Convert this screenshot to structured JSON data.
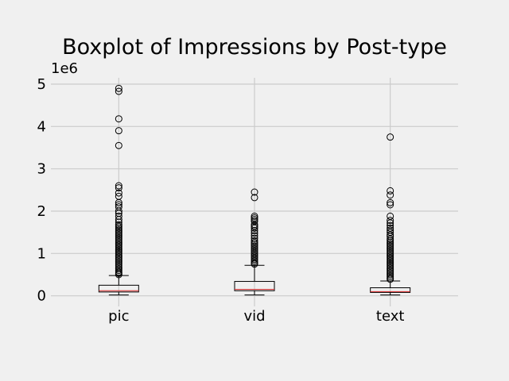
{
  "chart_data": {
    "type": "boxplot",
    "title": "Boxplot of Impressions by Post-type",
    "xlabel": "",
    "ylabel": "",
    "y_offset_label": "1e6",
    "y_scale": 1000000,
    "ylim": [
      -250000,
      5150000
    ],
    "y_ticks": [
      0,
      1000000,
      2000000,
      3000000,
      4000000,
      5000000
    ],
    "y_tick_labels": [
      "0",
      "1",
      "2",
      "3",
      "4",
      "5"
    ],
    "categories": [
      "pic",
      "vid",
      "text"
    ],
    "grid": true,
    "colors": {
      "background": "#f0f0f0",
      "grid": "#cbcbcb",
      "median": "#d62728",
      "box": "#000000"
    },
    "boxes": [
      {
        "category": "pic",
        "whisker_low": 20000,
        "q1": 90000,
        "median": 120000,
        "q3": 250000,
        "whisker_high": 480000,
        "outliers": [
          4900000,
          4830000,
          4180000,
          3900000,
          3550000,
          2600000,
          2550000,
          2430000,
          2350000,
          2200000,
          2150000,
          2100000,
          2000000,
          1950000,
          1880000,
          1800000,
          1740000,
          1680000,
          1640000,
          1600000,
          1560000,
          1520000,
          1480000,
          1440000,
          1400000,
          1360000,
          1320000,
          1280000,
          1240000,
          1200000,
          1160000,
          1120000,
          1080000,
          1040000,
          1000000,
          960000,
          920000,
          880000,
          840000,
          800000,
          760000,
          720000,
          680000,
          640000,
          600000,
          560000,
          530000,
          500000
        ]
      },
      {
        "category": "vid",
        "whisker_low": 20000,
        "q1": 120000,
        "median": 150000,
        "q3": 340000,
        "whisker_high": 720000,
        "outliers": [
          2450000,
          2320000,
          1880000,
          1840000,
          1800000,
          1760000,
          1680000,
          1640000,
          1600000,
          1540000,
          1480000,
          1420000,
          1360000,
          1300000,
          1260000,
          1220000,
          1180000,
          1140000,
          1100000,
          1060000,
          1020000,
          980000,
          940000,
          900000,
          860000,
          820000,
          780000,
          750000
        ]
      },
      {
        "category": "text",
        "whisker_low": 20000,
        "q1": 80000,
        "median": 100000,
        "q3": 190000,
        "whisker_high": 350000,
        "outliers": [
          3750000,
          2480000,
          2380000,
          2200000,
          2150000,
          1880000,
          1780000,
          1720000,
          1660000,
          1600000,
          1550000,
          1500000,
          1440000,
          1400000,
          1340000,
          1300000,
          1260000,
          1220000,
          1180000,
          1140000,
          1100000,
          1060000,
          1020000,
          980000,
          940000,
          900000,
          860000,
          820000,
          780000,
          740000,
          700000,
          660000,
          620000,
          580000,
          540000,
          500000,
          460000,
          420000,
          390000
        ]
      }
    ]
  }
}
